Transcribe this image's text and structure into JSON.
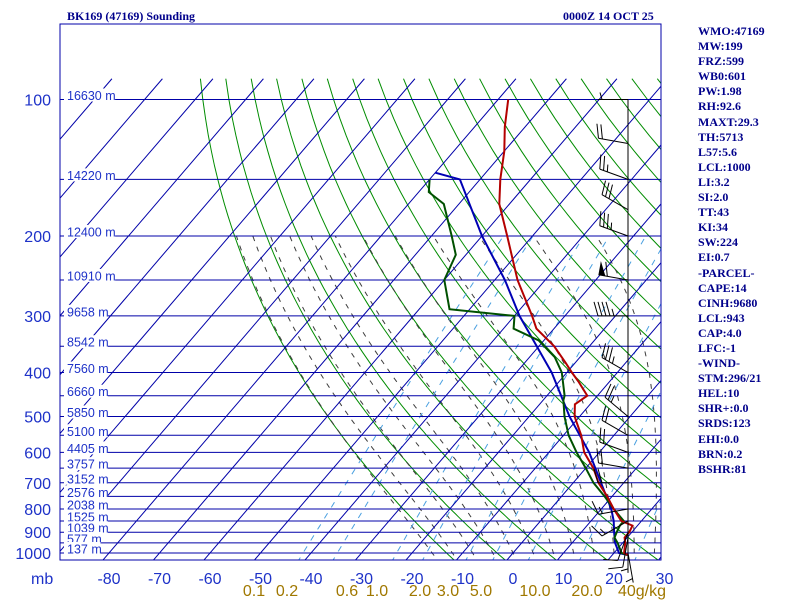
{
  "chart_data": {
    "type": "skew-t log-p sounding",
    "title": "BK169 (47169) Sounding",
    "valid_time": "0000Z 14 OCT 25",
    "pressure_unit": "mb",
    "pressure_levels_mb": [
      100,
      200,
      300,
      400,
      500,
      600,
      700,
      800,
      900,
      1000
    ],
    "temperature_ticks_c": [
      -80,
      -70,
      -60,
      -50,
      -40,
      -30,
      -20,
      -10,
      0,
      10,
      20,
      30
    ],
    "temperature_tick_labels": [
      "-80",
      "-70",
      "-60",
      "-50",
      "-40",
      "-30",
      "-20",
      "-10",
      "0",
      "10",
      "20",
      "30"
    ],
    "mixing_ratio_labels": [
      "0.1",
      "0.2",
      "0.6",
      "1.0",
      "2.0",
      "3.0",
      "5.0",
      "10.0",
      "20.0",
      "40g/kg"
    ],
    "height_labels": [
      {
        "p": 100,
        "text": "16630 m"
      },
      {
        "p": 150,
        "text": "14220 m"
      },
      {
        "p": 200,
        "text": "12400 m"
      },
      {
        "p": 250,
        "text": "10910 m"
      },
      {
        "p": 300,
        "text": "9658 m"
      },
      {
        "p": 350,
        "text": "8542 m"
      },
      {
        "p": 400,
        "text": "7560 m"
      },
      {
        "p": 450,
        "text": "6660 m"
      },
      {
        "p": 500,
        "text": "5850 m"
      },
      {
        "p": 550,
        "text": "5100 m"
      },
      {
        "p": 600,
        "text": "4405 m"
      },
      {
        "p": 650,
        "text": "3757 m"
      },
      {
        "p": 700,
        "text": "3152 m"
      },
      {
        "p": 750,
        "text": "2576 m"
      },
      {
        "p": 800,
        "text": "2038 m"
      },
      {
        "p": 850,
        "text": "1525 m"
      },
      {
        "p": 900,
        "text": "1039 m"
      },
      {
        "p": 950,
        "text": "577 m"
      },
      {
        "p": 1000,
        "text": "137 m"
      }
    ],
    "temperature_profile": [
      {
        "p": 1010,
        "t": 23.0
      },
      {
        "p": 1000,
        "t": 22.0
      },
      {
        "p": 950,
        "t": 20.5
      },
      {
        "p": 925,
        "t": 19.5
      },
      {
        "p": 900,
        "t": 19.5
      },
      {
        "p": 870,
        "t": 19.0
      },
      {
        "p": 850,
        "t": 16.0
      },
      {
        "p": 800,
        "t": 12.5
      },
      {
        "p": 750,
        "t": 9.0
      },
      {
        "p": 700,
        "t": 5.0
      },
      {
        "p": 650,
        "t": 1.5
      },
      {
        "p": 600,
        "t": -3.0
      },
      {
        "p": 550,
        "t": -6.5
      },
      {
        "p": 500,
        "t": -11.0
      },
      {
        "p": 470,
        "t": -13.0
      },
      {
        "p": 450,
        "t": -12.0
      },
      {
        "p": 420,
        "t": -16.0
      },
      {
        "p": 400,
        "t": -19.0
      },
      {
        "p": 380,
        "t": -22.0
      },
      {
        "p": 350,
        "t": -27.0
      },
      {
        "p": 320,
        "t": -33.5
      },
      {
        "p": 300,
        "t": -36.5
      },
      {
        "p": 250,
        "t": -45.5
      },
      {
        "p": 200,
        "t": -55.0
      },
      {
        "p": 170,
        "t": -62.0
      },
      {
        "p": 150,
        "t": -66.0
      },
      {
        "p": 130,
        "t": -70.0
      },
      {
        "p": 115,
        "t": -74.0
      },
      {
        "p": 100,
        "t": -78.0
      }
    ],
    "dewpoint_profile": [
      {
        "p": 1010,
        "t": 23.0
      },
      {
        "p": 1000,
        "t": 21.5
      },
      {
        "p": 950,
        "t": 19.0
      },
      {
        "p": 925,
        "t": 17.5
      },
      {
        "p": 900,
        "t": 17.0
      },
      {
        "p": 870,
        "t": 16.5
      },
      {
        "p": 850,
        "t": 16.5
      },
      {
        "p": 800,
        "t": 12.5
      },
      {
        "p": 750,
        "t": 8.5
      },
      {
        "p": 700,
        "t": 4.0
      },
      {
        "p": 650,
        "t": 0.0
      },
      {
        "p": 600,
        "t": -4.5
      },
      {
        "p": 550,
        "t": -9.0
      },
      {
        "p": 500,
        "t": -13.0
      },
      {
        "p": 460,
        "t": -16.0
      },
      {
        "p": 450,
        "t": -16.5
      },
      {
        "p": 400,
        "t": -21.0
      },
      {
        "p": 370,
        "t": -25.0
      },
      {
        "p": 340,
        "t": -31.0
      },
      {
        "p": 320,
        "t": -38.0
      },
      {
        "p": 300,
        "t": -40.0
      },
      {
        "p": 290,
        "t": -54.0
      },
      {
        "p": 250,
        "t": -60.0
      },
      {
        "p": 220,
        "t": -62.0
      },
      {
        "p": 200,
        "t": -66.0
      },
      {
        "p": 170,
        "t": -73.0
      },
      {
        "p": 160,
        "t": -78.0
      },
      {
        "p": 150,
        "t": -80.0
      }
    ],
    "parcel_profile": [
      {
        "p": 1010,
        "t": 23.0
      },
      {
        "p": 1000,
        "t": 21.0
      },
      {
        "p": 950,
        "t": 18.5
      },
      {
        "p": 900,
        "t": 16.5
      },
      {
        "p": 850,
        "t": 14.5
      },
      {
        "p": 800,
        "t": 12.0
      },
      {
        "p": 700,
        "t": 5.5
      },
      {
        "p": 600,
        "t": -2.0
      },
      {
        "p": 500,
        "t": -12.0
      },
      {
        "p": 400,
        "t": -23.0
      },
      {
        "p": 300,
        "t": -39.0
      },
      {
        "p": 250,
        "t": -48.0
      },
      {
        "p": 200,
        "t": -60.0
      },
      {
        "p": 150,
        "t": -74.0
      },
      {
        "p": 145,
        "t": -80.0
      }
    ],
    "dry_adiabats_theta_k": [
      260,
      270,
      280,
      290,
      300,
      310,
      320,
      330,
      340,
      350,
      360,
      370,
      380,
      390,
      400,
      410,
      420,
      430,
      440,
      450,
      460,
      470,
      480
    ],
    "moist_adiabats_tw_c": [
      -16,
      -12,
      -8,
      -4,
      0,
      4,
      8,
      12,
      16,
      20,
      24,
      28,
      32
    ],
    "mixing_ratio_lines_gkg": [
      0.1,
      0.2,
      0.6,
      1.0,
      2.0,
      3.0,
      5.0,
      10.0,
      20.0,
      40.0
    ],
    "wind_barbs": [
      {
        "p": 100,
        "dir": 270,
        "spd": 5
      },
      {
        "p": 125,
        "dir": 280,
        "spd": 20
      },
      {
        "p": 150,
        "dir": 290,
        "spd": 25
      },
      {
        "p": 175,
        "dir": 300,
        "spd": 30
      },
      {
        "p": 200,
        "dir": 290,
        "spd": 35
      },
      {
        "p": 250,
        "dir": 280,
        "spd": 60
      },
      {
        "p": 300,
        "dir": 270,
        "spd": 45
      },
      {
        "p": 400,
        "dir": 300,
        "spd": 35
      },
      {
        "p": 500,
        "dir": 310,
        "spd": 25
      },
      {
        "p": 550,
        "dir": 300,
        "spd": 20
      },
      {
        "p": 600,
        "dir": 290,
        "spd": 20
      },
      {
        "p": 650,
        "dir": 280,
        "spd": 20
      },
      {
        "p": 700,
        "dir": 270,
        "spd": 20
      },
      {
        "p": 800,
        "dir": 260,
        "spd": 15
      },
      {
        "p": 850,
        "dir": 240,
        "spd": 15
      },
      {
        "p": 900,
        "dir": 200,
        "spd": 10
      },
      {
        "p": 925,
        "dir": 190,
        "spd": 10
      },
      {
        "p": 950,
        "dir": 180,
        "spd": 5
      },
      {
        "p": 1000,
        "dir": 170,
        "spd": 5
      }
    ],
    "colors": {
      "isobars": "#0000a8",
      "isotherms": "#0000a8",
      "dry_adiabats": "#008c00",
      "moist_adiabats": "#3c3c3c",
      "mixing_ratio": "#4aa0e0",
      "temperature": "#b40000",
      "dewpoint": "#005000",
      "parcel": "#0000b4",
      "axis_labels": "#1e32c8",
      "barbs": "#000000",
      "index_text": "#00008b"
    }
  },
  "indices": [
    "WMO:47169",
    "MW:199",
    "FRZ:599",
    "WB0:601",
    "PW:1.98",
    "RH:92.6",
    "MAXT:29.3",
    "TH:5713",
    "L57:5.6",
    "LCL:1000",
    "LI:3.2",
    "SI:2.0",
    "TT:43",
    "KI:34",
    "SW:224",
    "EI:0.7",
    "-PARCEL-",
    "CAPE:14",
    "CINH:9680",
    "LCL:943",
    "CAP:4.0",
    "LFC:-1",
    "-WIND-",
    "STM:296/21",
    "HEL:10",
    "SHR+:0.0",
    "SRDS:123",
    "EHI:0.0",
    "BRN:0.2",
    "BSHR:81"
  ]
}
